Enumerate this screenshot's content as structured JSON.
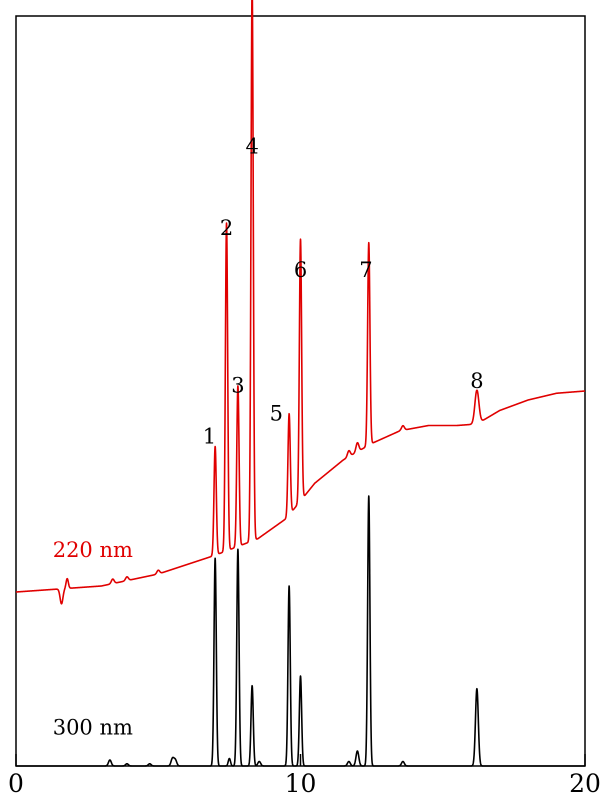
{
  "chart_data": {
    "type": "line",
    "xlim": [
      0,
      20
    ],
    "x_ticks": [
      "0",
      "10",
      "20"
    ],
    "y_axis_labels": false,
    "grid": false,
    "series": [
      {
        "name": "220 nm",
        "color": "#e00000",
        "baseline": [
          [
            0,
            0.232
          ],
          [
            3,
            0.24
          ],
          [
            5,
            0.256
          ],
          [
            7,
            0.281
          ],
          [
            8.5,
            0.303
          ],
          [
            9.5,
            0.33
          ],
          [
            10.5,
            0.377
          ],
          [
            11.5,
            0.408
          ],
          [
            12.5,
            0.43
          ],
          [
            13.5,
            0.447
          ],
          [
            14.5,
            0.454
          ],
          [
            15.5,
            0.454
          ],
          [
            16.2,
            0.456
          ],
          [
            17,
            0.474
          ],
          [
            18,
            0.488
          ],
          [
            19,
            0.497
          ],
          [
            20,
            0.5
          ]
        ],
        "peaks": [
          {
            "x": 1.6,
            "h": -0.02,
            "w": 0.05
          },
          {
            "x": 1.8,
            "h": 0.013,
            "w": 0.04
          },
          {
            "x": 3.4,
            "h": 0.006,
            "w": 0.05
          },
          {
            "x": 3.9,
            "h": 0.005,
            "w": 0.05
          },
          {
            "x": 5.0,
            "h": 0.005,
            "w": 0.05
          },
          {
            "x": 7.0,
            "h": 0.145,
            "w": 0.04
          },
          {
            "x": 7.4,
            "h": 0.437,
            "w": 0.04
          },
          {
            "x": 7.8,
            "h": 0.214,
            "w": 0.04
          },
          {
            "x": 8.3,
            "h": 0.74,
            "w": 0.04
          },
          {
            "x": 9.6,
            "h": 0.135,
            "w": 0.04
          },
          {
            "x": 10.0,
            "h": 0.349,
            "w": 0.04
          },
          {
            "x": 11.7,
            "h": 0.008,
            "w": 0.05
          },
          {
            "x": 12.0,
            "h": 0.012,
            "w": 0.05
          },
          {
            "x": 12.4,
            "h": 0.27,
            "w": 0.04
          },
          {
            "x": 13.6,
            "h": 0.006,
            "w": 0.05
          },
          {
            "x": 16.2,
            "h": 0.045,
            "w": 0.07
          }
        ]
      },
      {
        "name": "300 nm",
        "color": "#000000",
        "baseline": [
          [
            0,
            0.0
          ],
          [
            20,
            0.0
          ]
        ],
        "peaks": [
          {
            "x": 3.3,
            "h": 0.008,
            "w": 0.05
          },
          {
            "x": 3.9,
            "h": 0.003,
            "w": 0.05
          },
          {
            "x": 4.7,
            "h": 0.003,
            "w": 0.05
          },
          {
            "x": 5.5,
            "h": 0.01,
            "w": 0.05
          },
          {
            "x": 5.6,
            "h": 0.008,
            "w": 0.05
          },
          {
            "x": 7.0,
            "h": 0.277,
            "w": 0.04
          },
          {
            "x": 7.5,
            "h": 0.01,
            "w": 0.04
          },
          {
            "x": 7.8,
            "h": 0.289,
            "w": 0.04
          },
          {
            "x": 8.3,
            "h": 0.107,
            "w": 0.04
          },
          {
            "x": 8.55,
            "h": 0.006,
            "w": 0.05
          },
          {
            "x": 9.6,
            "h": 0.24,
            "w": 0.04
          },
          {
            "x": 10.0,
            "h": 0.12,
            "w": 0.04
          },
          {
            "x": 11.7,
            "h": 0.006,
            "w": 0.05
          },
          {
            "x": 12.0,
            "h": 0.02,
            "w": 0.05
          },
          {
            "x": 12.4,
            "h": 0.36,
            "w": 0.04
          },
          {
            "x": 13.6,
            "h": 0.006,
            "w": 0.05
          },
          {
            "x": 16.2,
            "h": 0.103,
            "w": 0.05
          }
        ]
      }
    ],
    "peak_labels": [
      {
        "text": "1",
        "x": 6.8,
        "y": 0.43
      },
      {
        "text": "2",
        "x": 7.4,
        "y": 0.708
      },
      {
        "text": "3",
        "x": 7.8,
        "y": 0.498
      },
      {
        "text": "4",
        "x": 8.3,
        "y": 0.817
      },
      {
        "text": "5",
        "x": 9.15,
        "y": 0.461
      },
      {
        "text": "6",
        "x": 10.0,
        "y": 0.652
      },
      {
        "text": "7",
        "x": 12.3,
        "y": 0.652
      },
      {
        "text": "8",
        "x": 16.2,
        "y": 0.504
      }
    ],
    "trace_labels": [
      {
        "text": "220 nm",
        "x": 2.7,
        "y": 0.279,
        "color": "#e00000"
      },
      {
        "text": "300 nm",
        "x": 2.7,
        "y": 0.042,
        "color": "#000000"
      }
    ]
  }
}
